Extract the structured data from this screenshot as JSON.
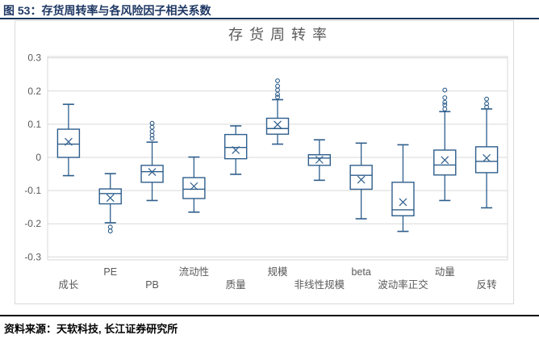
{
  "header": {
    "title": "图 53：存货周转率与各风险因子相关系数"
  },
  "footer": {
    "source_label": "资料来源：",
    "source_text": "天软科技, 长江证券研究所"
  },
  "colors": {
    "header_text": "#1F3864",
    "header_rule": "#17365D",
    "frame_border": "#D9D9D9",
    "chart_title": "#595959",
    "axis_text": "#595959",
    "box_stroke": "#2E5E8C",
    "gridline": "#D9D9D9",
    "footer_rule": "#000000",
    "footer_text": "#000000"
  },
  "chart_data": {
    "type": "boxplot",
    "title": "存货周转率",
    "xlabel": "",
    "ylabel": "",
    "ylim": [
      -0.3,
      0.3
    ],
    "grid": true,
    "legend": "none",
    "yticks": [
      -0.3,
      -0.2,
      -0.1,
      0,
      0.1,
      0.2,
      0.3
    ],
    "ytick_labels": [
      "-0.3",
      "-0.2",
      "-0.1",
      "0",
      "0.1",
      "0.2",
      "0.3"
    ],
    "categories": [
      "成长",
      "PE",
      "PB",
      "流动性",
      "质量",
      "规模",
      "非线性规模",
      "beta",
      "波动率正交",
      "动量",
      "反转"
    ],
    "boxes": [
      {
        "category": "成长",
        "label_row": "lower",
        "whisker_low": -0.055,
        "q1": 0.0,
        "median": 0.04,
        "q3": 0.085,
        "whisker_high": 0.16,
        "mean": 0.047,
        "outliers": []
      },
      {
        "category": "PE",
        "label_row": "upper",
        "whisker_low": -0.197,
        "q1": -0.14,
        "median": -0.109,
        "q3": -0.095,
        "whisker_high": -0.049,
        "mean": -0.122,
        "outliers": [
          -0.21,
          -0.222
        ]
      },
      {
        "category": "PB",
        "label_row": "lower",
        "whisker_low": -0.13,
        "q1": -0.075,
        "median": -0.043,
        "q3": -0.024,
        "whisker_high": 0.046,
        "mean": -0.044,
        "outliers": [
          0.057,
          0.067,
          0.078,
          0.091,
          0.103
        ]
      },
      {
        "category": "流动性",
        "label_row": "upper",
        "whisker_low": -0.165,
        "q1": -0.124,
        "median": -0.096,
        "q3": -0.061,
        "whisker_high": 0.001,
        "mean": -0.087,
        "outliers": []
      },
      {
        "category": "质量",
        "label_row": "lower",
        "whisker_low": -0.051,
        "q1": -0.004,
        "median": 0.03,
        "q3": 0.069,
        "whisker_high": 0.095,
        "mean": 0.022,
        "outliers": []
      },
      {
        "category": "规模",
        "label_row": "upper",
        "whisker_low": 0.04,
        "q1": 0.07,
        "median": 0.087,
        "q3": 0.118,
        "whisker_high": 0.174,
        "mean": 0.099,
        "outliers": [
          0.182,
          0.19,
          0.203,
          0.215,
          0.231
        ]
      },
      {
        "category": "非线性规模",
        "label_row": "lower",
        "whisker_low": -0.069,
        "q1": -0.024,
        "median": -0.002,
        "q3": 0.008,
        "whisker_high": 0.053,
        "mean": -0.007,
        "outliers": []
      },
      {
        "category": "beta",
        "label_row": "upper",
        "whisker_low": -0.185,
        "q1": -0.096,
        "median": -0.054,
        "q3": -0.024,
        "whisker_high": 0.043,
        "mean": -0.067,
        "outliers": []
      },
      {
        "category": "波动率正交",
        "label_row": "lower",
        "whisker_low": -0.223,
        "q1": -0.176,
        "median": -0.158,
        "q3": -0.075,
        "whisker_high": 0.038,
        "mean": -0.135,
        "outliers": []
      },
      {
        "category": "动量",
        "label_row": "upper",
        "whisker_low": -0.13,
        "q1": -0.053,
        "median": -0.023,
        "q3": 0.022,
        "whisker_high": 0.138,
        "mean": -0.008,
        "outliers": [
          0.146,
          0.158,
          0.166,
          0.18,
          0.203
        ]
      },
      {
        "category": "反转",
        "label_row": "lower",
        "whisker_low": -0.152,
        "q1": -0.046,
        "median": -0.012,
        "q3": 0.032,
        "whisker_high": 0.146,
        "mean": -0.002,
        "outliers": [
          0.152,
          0.162,
          0.176
        ]
      }
    ]
  }
}
